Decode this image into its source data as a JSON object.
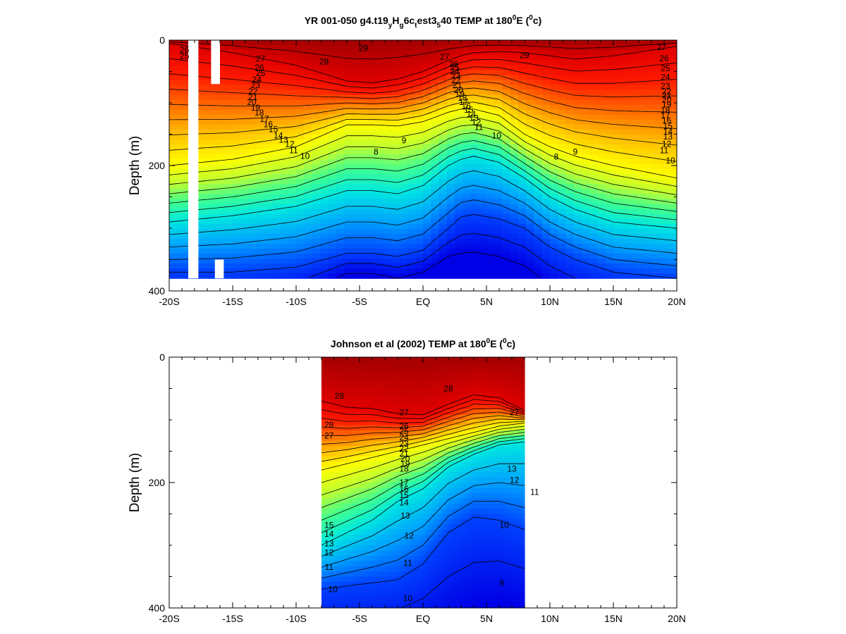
{
  "colors": {
    "colormap": [
      "#0000e6",
      "#0040ff",
      "#00a0ff",
      "#00e8e0",
      "#40ff90",
      "#c0ff30",
      "#ffff00",
      "#ffc000",
      "#ff6a00",
      "#ff1a00",
      "#e00000",
      "#9c0000"
    ],
    "colormap_min_c": 8,
    "colormap_max_c": 30,
    "contour_line": "#000000",
    "gap": "#ffffff"
  },
  "chart_data": [
    {
      "type": "heatmap",
      "title_parts": {
        "main": "YR 001-050 g4.t19",
        "s1": "y",
        "m2": "H",
        "s2": "g",
        "m3": "6c",
        "s3": "t",
        "m4": "est3",
        "s4": "5",
        "m5": "40 TEMP at 180",
        "sup1": "0",
        "m6": "E (",
        "sup2": "0",
        "m7": "c)"
      },
      "title": "YR 001-050 g4.t19yHg6ctest3540 TEMP at 180°E (°c)",
      "xlabel": "",
      "ylabel": "Depth (m)",
      "xlim": [
        -20,
        20
      ],
      "ylim": [
        0,
        400
      ],
      "y_inverted": true,
      "xticks": [
        {
          "v": -20,
          "label": "-20S"
        },
        {
          "v": -15,
          "label": "-15S"
        },
        {
          "v": -10,
          "label": "-10S"
        },
        {
          "v": -5,
          "label": "-5S"
        },
        {
          "v": 0,
          "label": "EQ"
        },
        {
          "v": 5,
          "label": "5N"
        },
        {
          "v": 10,
          "label": "10N"
        },
        {
          "v": 15,
          "label": "15N"
        },
        {
          "v": 20,
          "label": "20N"
        }
      ],
      "yticks": [
        {
          "v": 0,
          "label": "0"
        },
        {
          "v": 200,
          "label": "200"
        },
        {
          "v": 400,
          "label": "400"
        }
      ],
      "data_x_range": [
        -20,
        20
      ],
      "data_depth_max": 380,
      "missing_columns": [
        {
          "lat": [
            -18.5,
            -17.7
          ],
          "depth": [
            0,
            380
          ]
        },
        {
          "lat": [
            -16.7,
            -16.0
          ],
          "depth": [
            0,
            70
          ]
        },
        {
          "lat": [
            -16.4,
            -15.7
          ],
          "depth": [
            350,
            380
          ]
        }
      ],
      "field": {
        "lats": [
          -20,
          -15,
          -10,
          -6,
          -4,
          -2,
          0,
          2,
          3,
          4,
          6,
          8,
          10,
          12,
          15,
          20
        ],
        "isotherm_depths": {
          "28": [
            5,
            20,
            40,
            65,
            68,
            62,
            50,
            32,
            25,
            20,
            18,
            20,
            25,
            30,
            25,
            10
          ],
          "20": [
            200,
            190,
            170,
            135,
            135,
            137,
            130,
            115,
            110,
            110,
            120,
            150,
            170,
            185,
            200,
            220
          ],
          "14": [
            290,
            280,
            265,
            240,
            240,
            245,
            232,
            200,
            190,
            185,
            195,
            220,
            250,
            270,
            290,
            300
          ],
          "10": [
            370,
            370,
            362,
            340,
            340,
            345,
            335,
            300,
            282,
            278,
            285,
            300,
            330,
            350,
            370,
            380
          ],
          "8": [
            420,
            420,
            410,
            372,
            372,
            380,
            370,
            345,
            340,
            338,
            345,
            360,
            390,
            410,
            420,
            430
          ]
        }
      },
      "contour_levels": [
        8,
        9,
        10,
        11,
        12,
        13,
        14,
        15,
        16,
        17,
        18,
        19,
        20,
        21,
        22,
        23,
        24,
        25,
        26,
        27,
        28,
        29
      ],
      "contour_labels": [
        {
          "text": "26",
          "lat": -18.8,
          "depth": 15
        },
        {
          "text": "25",
          "lat": -18.8,
          "depth": 25
        },
        {
          "text": "29",
          "lat": -4.7,
          "depth": 13
        },
        {
          "text": "28",
          "lat": -7.8,
          "depth": 34
        },
        {
          "text": "27",
          "lat": -12.8,
          "depth": 30
        },
        {
          "text": "26",
          "lat": -12.9,
          "depth": 44
        },
        {
          "text": "25",
          "lat": -12.8,
          "depth": 53
        },
        {
          "text": "24",
          "lat": -13.1,
          "depth": 63
        },
        {
          "text": "23",
          "lat": -13.2,
          "depth": 72
        },
        {
          "text": "22",
          "lat": -13.4,
          "depth": 82
        },
        {
          "text": "21",
          "lat": -13.4,
          "depth": 91
        },
        {
          "text": "20",
          "lat": -13.5,
          "depth": 99
        },
        {
          "text": "19",
          "lat": -13.2,
          "depth": 108
        },
        {
          "text": "18",
          "lat": -12.9,
          "depth": 116
        },
        {
          "text": "17",
          "lat": -12.5,
          "depth": 126
        },
        {
          "text": "16",
          "lat": -12.2,
          "depth": 134
        },
        {
          "text": "15",
          "lat": -11.8,
          "depth": 142
        },
        {
          "text": "14",
          "lat": -11.4,
          "depth": 152
        },
        {
          "text": "13",
          "lat": -11.0,
          "depth": 159
        },
        {
          "text": "12",
          "lat": -10.5,
          "depth": 166
        },
        {
          "text": "11",
          "lat": -10.2,
          "depth": 176
        },
        {
          "text": "10",
          "lat": -9.3,
          "depth": 185
        },
        {
          "text": "9",
          "lat": -1.5,
          "depth": 160
        },
        {
          "text": "8",
          "lat": -3.7,
          "depth": 178
        },
        {
          "text": "27",
          "lat": 1.7,
          "depth": 27
        },
        {
          "text": "26",
          "lat": 2.4,
          "depth": 38
        },
        {
          "text": "25",
          "lat": 2.5,
          "depth": 44
        },
        {
          "text": "24",
          "lat": 2.5,
          "depth": 50
        },
        {
          "text": "23",
          "lat": 2.6,
          "depth": 57
        },
        {
          "text": "22",
          "lat": 2.6,
          "depth": 64
        },
        {
          "text": "21",
          "lat": 2.7,
          "depth": 72
        },
        {
          "text": "20",
          "lat": 2.8,
          "depth": 80
        },
        {
          "text": "19",
          "lat": 2.9,
          "depth": 86
        },
        {
          "text": "18",
          "lat": 3.1,
          "depth": 92
        },
        {
          "text": "17",
          "lat": 3.2,
          "depth": 99
        },
        {
          "text": "16",
          "lat": 3.4,
          "depth": 105
        },
        {
          "text": "15",
          "lat": 3.6,
          "depth": 111
        },
        {
          "text": "14",
          "lat": 3.8,
          "depth": 118
        },
        {
          "text": "13",
          "lat": 4.0,
          "depth": 124
        },
        {
          "text": "12",
          "lat": 4.2,
          "depth": 131
        },
        {
          "text": "11",
          "lat": 4.4,
          "depth": 139
        },
        {
          "text": "10",
          "lat": 5.8,
          "depth": 152
        },
        {
          "text": "29",
          "lat": 8.0,
          "depth": 24
        },
        {
          "text": "9",
          "lat": 12.0,
          "depth": 178
        },
        {
          "text": "8",
          "lat": 10.5,
          "depth": 186
        },
        {
          "text": "27",
          "lat": 18.8,
          "depth": 11
        },
        {
          "text": "26",
          "lat": 19.0,
          "depth": 29
        },
        {
          "text": "25",
          "lat": 19.1,
          "depth": 45
        },
        {
          "text": "24",
          "lat": 19.1,
          "depth": 59
        },
        {
          "text": "23",
          "lat": 19.1,
          "depth": 73
        },
        {
          "text": "22",
          "lat": 19.2,
          "depth": 82
        },
        {
          "text": "21",
          "lat": 19.2,
          "depth": 88
        },
        {
          "text": "20",
          "lat": 19.2,
          "depth": 95
        },
        {
          "text": "19",
          "lat": 19.2,
          "depth": 103
        },
        {
          "text": "18",
          "lat": 19.1,
          "depth": 112
        },
        {
          "text": "17",
          "lat": 19.1,
          "depth": 120
        },
        {
          "text": "16",
          "lat": 19.2,
          "depth": 128
        },
        {
          "text": "15",
          "lat": 19.3,
          "depth": 137
        },
        {
          "text": "14",
          "lat": 19.3,
          "depth": 146
        },
        {
          "text": "13",
          "lat": 19.3,
          "depth": 154
        },
        {
          "text": "12",
          "lat": 19.2,
          "depth": 166
        },
        {
          "text": "11",
          "lat": 19.0,
          "depth": 176
        },
        {
          "text": "10",
          "lat": 19.5,
          "depth": 192
        }
      ]
    },
    {
      "type": "heatmap",
      "title_parts": {
        "main": "Johnson et al (2002) TEMP at 180",
        "sup1": "0",
        "m6": "E (",
        "sup2": "0",
        "m7": "c)"
      },
      "title": "Johnson et al (2002) TEMP at 180°E (°c)",
      "xlabel": "",
      "ylabel": "Depth (m)",
      "xlim": [
        -20,
        20
      ],
      "ylim": [
        0,
        400
      ],
      "y_inverted": true,
      "xticks": [
        {
          "v": -20,
          "label": "-20S"
        },
        {
          "v": -15,
          "label": "-15S"
        },
        {
          "v": -10,
          "label": "-10S"
        },
        {
          "v": -5,
          "label": "-5S"
        },
        {
          "v": 0,
          "label": "EQ"
        },
        {
          "v": 5,
          "label": "5N"
        },
        {
          "v": 10,
          "label": "10N"
        },
        {
          "v": 15,
          "label": "15N"
        },
        {
          "v": 20,
          "label": "20N"
        }
      ],
      "yticks": [
        {
          "v": 0,
          "label": "0"
        },
        {
          "v": 200,
          "label": "200"
        },
        {
          "v": 400,
          "label": "400"
        }
      ],
      "data_x_range": [
        -8,
        8
      ],
      "data_depth_max": 400,
      "missing_columns": [],
      "field": {
        "lats": [
          -8,
          -6,
          -4,
          -2,
          0,
          2,
          4,
          6,
          8
        ],
        "isotherm_depths": {
          "28": [
            70,
            80,
            82,
            90,
            92,
            75,
            60,
            65,
            85
          ],
          "20": [
            180,
            170,
            160,
            150,
            140,
            130,
            120,
            110,
            105
          ],
          "14": [
            300,
            280,
            260,
            230,
            210,
            175,
            155,
            140,
            135
          ],
          "10": [
            370,
            365,
            360,
            355,
            330,
            280,
            255,
            260,
            275
          ],
          "8": [
            460,
            460,
            460,
            450,
            440,
            420,
            400,
            390,
            400
          ]
        }
      },
      "contour_levels": [
        9,
        10,
        11,
        12,
        13,
        14,
        15,
        16,
        17,
        18,
        19,
        20,
        21,
        22,
        23,
        24,
        25,
        26,
        27,
        28
      ],
      "contour_labels": [
        {
          "text": "28",
          "lat": -6.6,
          "depth": 62
        },
        {
          "text": "28",
          "lat": 2.0,
          "depth": 50
        },
        {
          "text": "28",
          "lat": -7.4,
          "depth": 108
        },
        {
          "text": "27",
          "lat": -7.4,
          "depth": 125
        },
        {
          "text": "15",
          "lat": -7.4,
          "depth": 268
        },
        {
          "text": "14",
          "lat": -7.4,
          "depth": 282
        },
        {
          "text": "13",
          "lat": -7.4,
          "depth": 297
        },
        {
          "text": "12",
          "lat": -7.4,
          "depth": 312
        },
        {
          "text": "11",
          "lat": -7.4,
          "depth": 335
        },
        {
          "text": "10",
          "lat": -7.1,
          "depth": 370
        },
        {
          "text": "27",
          "lat": -1.5,
          "depth": 88
        },
        {
          "text": "26",
          "lat": -1.5,
          "depth": 110
        },
        {
          "text": "25",
          "lat": -1.5,
          "depth": 118
        },
        {
          "text": "24",
          "lat": -1.5,
          "depth": 128
        },
        {
          "text": "23",
          "lat": -1.5,
          "depth": 138
        },
        {
          "text": "22",
          "lat": -1.5,
          "depth": 146
        },
        {
          "text": "21",
          "lat": -1.5,
          "depth": 154
        },
        {
          "text": "20",
          "lat": -1.4,
          "depth": 162
        },
        {
          "text": "19",
          "lat": -1.4,
          "depth": 170
        },
        {
          "text": "18",
          "lat": -1.5,
          "depth": 178
        },
        {
          "text": "17",
          "lat": -1.5,
          "depth": 200
        },
        {
          "text": "16",
          "lat": -1.5,
          "depth": 210
        },
        {
          "text": "15",
          "lat": -1.5,
          "depth": 220
        },
        {
          "text": "14",
          "lat": -1.5,
          "depth": 232
        },
        {
          "text": "13",
          "lat": -1.4,
          "depth": 253
        },
        {
          "text": "12",
          "lat": -1.1,
          "depth": 285
        },
        {
          "text": "11",
          "lat": -1.2,
          "depth": 328
        },
        {
          "text": "10",
          "lat": -1.2,
          "depth": 385
        },
        {
          "text": "27",
          "lat": 7.2,
          "depth": 88
        },
        {
          "text": "13",
          "lat": 7.0,
          "depth": 178
        },
        {
          "text": "12",
          "lat": 7.2,
          "depth": 196
        },
        {
          "text": "11",
          "lat": 8.8,
          "depth": 215
        },
        {
          "text": "10",
          "lat": 6.4,
          "depth": 268
        },
        {
          "text": "9",
          "lat": 6.2,
          "depth": 360
        }
      ]
    }
  ]
}
